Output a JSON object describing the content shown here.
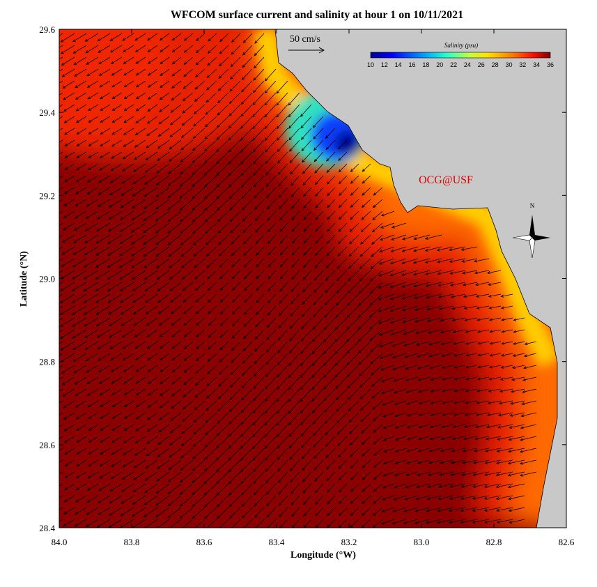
{
  "map": {
    "title": "WFCOM surface current and salinity at hour 1 on 10/11/2021",
    "x_axis_label": "Longitude (°W)",
    "y_axis_label": "Latitude (°N)",
    "xlim": [
      84.0,
      82.6
    ],
    "ylim": [
      28.4,
      29.6
    ],
    "xticks": [
      {
        "value": 84.0,
        "label": "84.0"
      },
      83.8,
      83.6,
      83.4,
      83.2,
      {
        "value": 83.0,
        "label": "83.0"
      },
      82.8,
      82.6
    ],
    "yticks": [
      28.4,
      28.6,
      28.8,
      {
        "value": 29.0,
        "label": "29.0"
      },
      29.2,
      29.4,
      29.6
    ],
    "scale_label": "50 cm/s",
    "watermark": "OCG@USF",
    "compass_label": "N",
    "colorbar": {
      "title": "Salinity (psu)",
      "ticks": [
        10,
        12,
        14,
        16,
        18,
        20,
        22,
        24,
        26,
        28,
        30,
        32,
        34,
        36
      ]
    }
  }
}
